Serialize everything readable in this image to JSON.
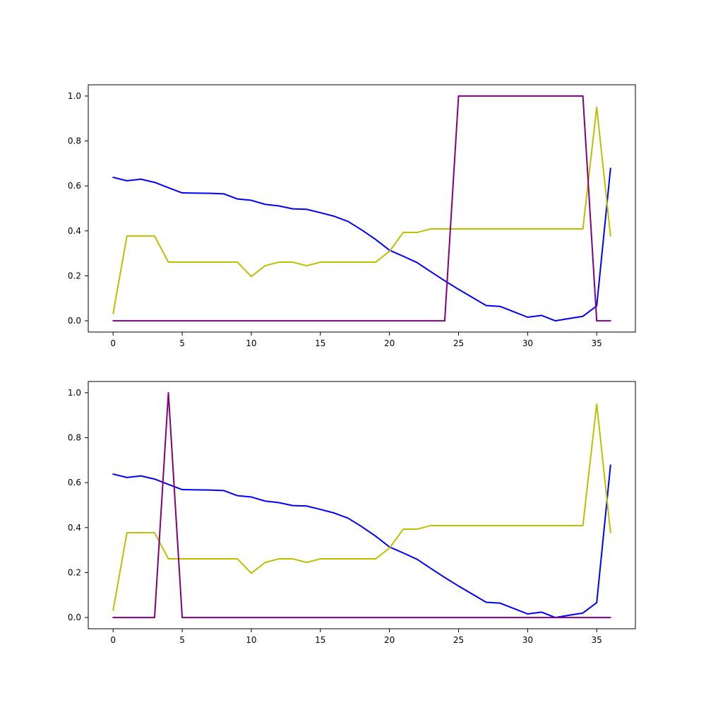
{
  "chart_data": [
    {
      "type": "line",
      "title": "",
      "xlabel": "",
      "ylabel": "",
      "xlim": [
        -1.8,
        37.8
      ],
      "ylim": [
        -0.05,
        1.05
      ],
      "xticks": [
        "0",
        "5",
        "10",
        "15",
        "20",
        "25",
        "30",
        "35"
      ],
      "yticks": [
        "0.0",
        "0.2",
        "0.4",
        "0.6",
        "0.8",
        "1.0"
      ],
      "grid": false,
      "x": [
        0,
        1,
        2,
        3,
        4,
        5,
        6,
        7,
        8,
        9,
        10,
        11,
        12,
        13,
        14,
        15,
        16,
        17,
        18,
        19,
        20,
        21,
        22,
        23,
        24,
        25,
        26,
        27,
        28,
        29,
        30,
        31,
        32,
        33,
        34,
        35,
        36
      ],
      "series": [
        {
          "color": "#0000ff",
          "values": [
            0.638,
            0.623,
            0.63,
            0.616,
            0.592,
            0.569,
            0.568,
            0.567,
            0.565,
            0.542,
            0.536,
            0.518,
            0.511,
            0.498,
            0.496,
            0.481,
            0.465,
            0.442,
            0.404,
            0.362,
            0.314,
            0.287,
            0.259,
            0.218,
            0.178,
            0.14,
            0.104,
            0.068,
            0.064,
            0.04,
            0.016,
            0.024,
            0.0,
            0.01,
            0.02,
            0.066,
            0.678
          ]
        },
        {
          "color": "#bfbf00",
          "values": [
            0.032,
            0.377,
            0.377,
            0.377,
            0.261,
            0.261,
            0.261,
            0.261,
            0.261,
            0.261,
            0.197,
            0.245,
            0.261,
            0.261,
            0.245,
            0.261,
            0.261,
            0.261,
            0.261,
            0.261,
            0.309,
            0.393,
            0.393,
            0.409,
            0.409,
            0.409,
            0.409,
            0.409,
            0.409,
            0.409,
            0.409,
            0.409,
            0.409,
            0.409,
            0.409,
            0.95,
            0.377
          ]
        },
        {
          "color": "#800080",
          "values": [
            0,
            0,
            0,
            0,
            0,
            0,
            0,
            0,
            0,
            0,
            0,
            0,
            0,
            0,
            0,
            0,
            0,
            0,
            0,
            0,
            0,
            0,
            0,
            0,
            0,
            1,
            1,
            1,
            1,
            1,
            1,
            1,
            1,
            1,
            1,
            0,
            0
          ]
        }
      ]
    },
    {
      "type": "line",
      "title": "",
      "xlabel": "",
      "ylabel": "",
      "xlim": [
        -1.8,
        37.8
      ],
      "ylim": [
        -0.05,
        1.05
      ],
      "xticks": [
        "0",
        "5",
        "10",
        "15",
        "20",
        "25",
        "30",
        "35"
      ],
      "yticks": [
        "0.0",
        "0.2",
        "0.4",
        "0.6",
        "0.8",
        "1.0"
      ],
      "grid": false,
      "x": [
        0,
        1,
        2,
        3,
        4,
        5,
        6,
        7,
        8,
        9,
        10,
        11,
        12,
        13,
        14,
        15,
        16,
        17,
        18,
        19,
        20,
        21,
        22,
        23,
        24,
        25,
        26,
        27,
        28,
        29,
        30,
        31,
        32,
        33,
        34,
        35,
        36
      ],
      "series": [
        {
          "color": "#0000ff",
          "values": [
            0.638,
            0.623,
            0.63,
            0.616,
            0.592,
            0.569,
            0.568,
            0.567,
            0.565,
            0.542,
            0.536,
            0.518,
            0.511,
            0.498,
            0.496,
            0.481,
            0.465,
            0.442,
            0.404,
            0.362,
            0.314,
            0.287,
            0.259,
            0.218,
            0.178,
            0.14,
            0.104,
            0.068,
            0.064,
            0.04,
            0.016,
            0.024,
            0.0,
            0.01,
            0.02,
            0.066,
            0.678
          ]
        },
        {
          "color": "#bfbf00",
          "values": [
            0.032,
            0.377,
            0.377,
            0.377,
            0.261,
            0.261,
            0.261,
            0.261,
            0.261,
            0.261,
            0.197,
            0.245,
            0.261,
            0.261,
            0.245,
            0.261,
            0.261,
            0.261,
            0.261,
            0.261,
            0.309,
            0.393,
            0.393,
            0.409,
            0.409,
            0.409,
            0.409,
            0.409,
            0.409,
            0.409,
            0.409,
            0.409,
            0.409,
            0.409,
            0.409,
            0.95,
            0.377
          ]
        },
        {
          "color": "#800080",
          "values": [
            0,
            0,
            0,
            0,
            1,
            0,
            0,
            0,
            0,
            0,
            0,
            0,
            0,
            0,
            0,
            0,
            0,
            0,
            0,
            0,
            0,
            0,
            0,
            0,
            0,
            0,
            0,
            0,
            0,
            0,
            0,
            0,
            0,
            0,
            0,
            0,
            0
          ]
        }
      ]
    }
  ]
}
